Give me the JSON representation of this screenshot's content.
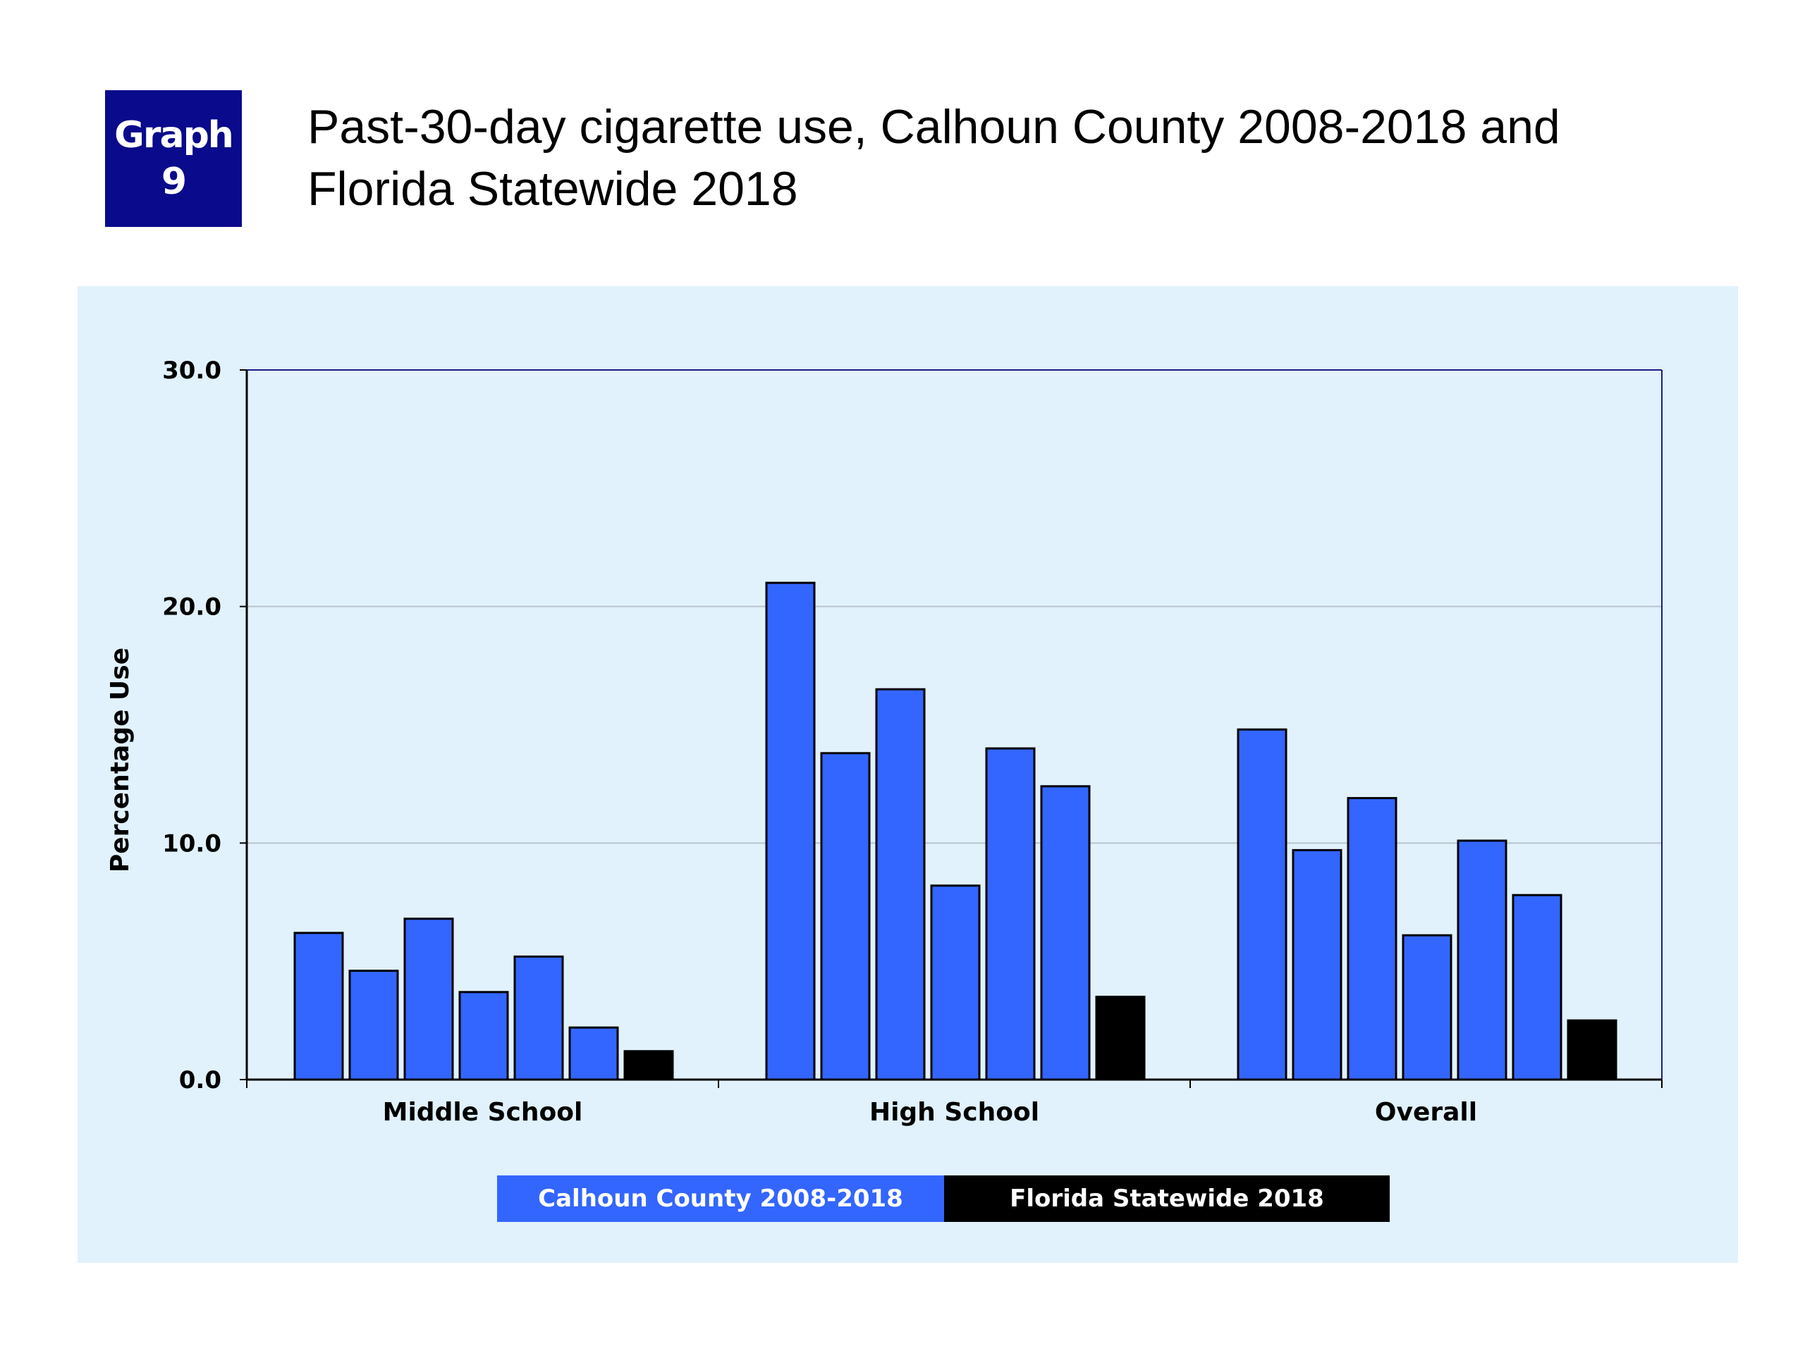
{
  "badge": {
    "line1": "Graph",
    "line2": "9"
  },
  "title": "Past-30-day cigarette use, Calhoun County 2008-2018 and Florida Statewide 2018",
  "colors": {
    "county": "#3366ff",
    "state": "#000000",
    "panel": "#e1f2fc",
    "badge": "#0a0a8c"
  },
  "chart_data": {
    "type": "bar",
    "title": "Past-30-day cigarette use, Calhoun County 2008-2018 and Florida Statewide 2018",
    "ylabel": "Percentage Use",
    "xlabel": "",
    "ylim": [
      0,
      30
    ],
    "yticks": [
      "0.0",
      "10.0",
      "20.0",
      "30.0"
    ],
    "grid": true,
    "legend_position": "bottom",
    "categories": [
      "Middle School",
      "High School",
      "Overall"
    ],
    "series": [
      {
        "name": "Calhoun County 2008-2018",
        "color": "#3366ff",
        "values": [
          [
            6.2,
            4.6,
            6.8,
            3.7,
            5.2,
            2.2
          ],
          [
            21.0,
            13.8,
            16.5,
            8.2,
            14.0,
            12.4
          ],
          [
            14.8,
            9.7,
            11.9,
            6.1,
            10.1,
            7.8
          ]
        ]
      },
      {
        "name": "Florida Statewide 2018",
        "color": "#000000",
        "values": [
          1.2,
          3.5,
          2.5
        ]
      }
    ]
  }
}
